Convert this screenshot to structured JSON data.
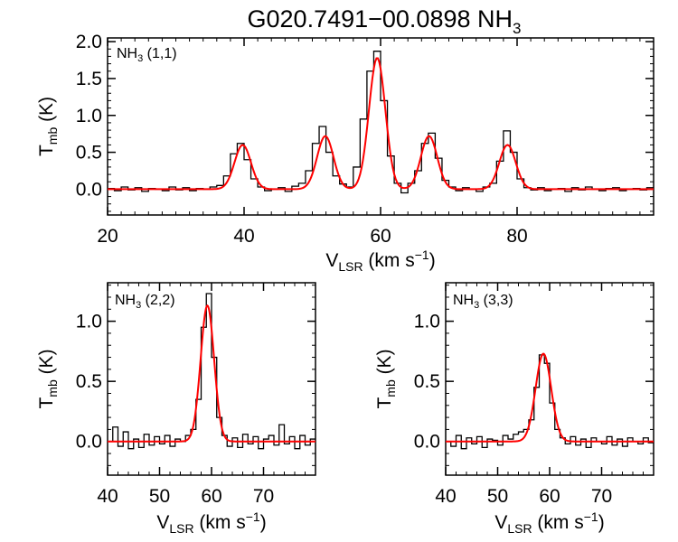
{
  "title": {
    "main": "G020.7491−00.0898 NH",
    "sub": "3"
  },
  "chart_data": [
    {
      "type": "line",
      "label_main": "NH",
      "label_sub": "3",
      "label_rest": " (1,1)",
      "xlabel_main": "V",
      "xlabel_sub": "LSR",
      "xlabel_rest": " (km s",
      "xlabel_sup": "−1",
      "xlabel_close": ")",
      "ylabel_main": "T",
      "ylabel_sub": "mb",
      "ylabel_rest": " (K)",
      "xlim": [
        20,
        100
      ],
      "ylim": [
        -0.35,
        2.05
      ],
      "xticks": [
        "20",
        "40",
        "60",
        "80"
      ],
      "xtick_values": [
        20,
        40,
        60,
        80
      ],
      "yticks": [
        "0.0",
        "0.5",
        "1.0",
        "1.5",
        "2.0"
      ],
      "ytick_values": [
        0.0,
        0.5,
        1.0,
        1.5,
        2.0
      ],
      "fit_components": [
        {
          "center": 39.8,
          "amp": 0.6,
          "sigma": 1.2
        },
        {
          "center": 51.9,
          "amp": 0.72,
          "sigma": 1.2
        },
        {
          "center": 59.5,
          "amp": 1.78,
          "sigma": 1.2
        },
        {
          "center": 67.1,
          "amp": 0.72,
          "sigma": 1.2
        },
        {
          "center": 78.6,
          "amp": 0.6,
          "sigma": 1.2
        }
      ],
      "data_x": [
        20.5,
        21.5,
        22.5,
        23.5,
        24.5,
        25.5,
        26.5,
        27.5,
        28.5,
        29.5,
        30.5,
        31.5,
        32.5,
        33.5,
        34.5,
        35.5,
        36.5,
        37.5,
        38.5,
        39.5,
        40.5,
        41.5,
        42.5,
        43.5,
        44.5,
        45.5,
        46.5,
        47.5,
        48.5,
        49.5,
        50.5,
        51.5,
        52.5,
        53.5,
        54.5,
        55.5,
        56.5,
        57.5,
        58.5,
        59.5,
        60.5,
        61.5,
        62.5,
        63.5,
        64.5,
        65.5,
        66.5,
        67.5,
        68.5,
        69.5,
        70.5,
        71.5,
        72.5,
        73.5,
        74.5,
        75.5,
        76.5,
        77.5,
        78.5,
        79.5,
        80.5,
        81.5,
        82.5,
        83.5,
        84.5,
        85.5,
        86.5,
        87.5,
        88.5,
        89.5,
        90.5,
        91.5,
        92.5,
        93.5,
        94.5,
        95.5,
        96.5,
        97.5,
        98.5,
        99.5
      ],
      "data_y": [
        0.01,
        -0.02,
        0.03,
        -0.01,
        0.02,
        -0.03,
        0.01,
        0.0,
        -0.02,
        0.03,
        -0.01,
        0.02,
        -0.02,
        0.01,
        0.0,
        0.03,
        0.05,
        0.18,
        0.48,
        0.62,
        0.4,
        0.14,
        0.03,
        -0.02,
        0.0,
        0.02,
        -0.03,
        0.04,
        0.08,
        0.25,
        0.62,
        0.85,
        0.5,
        0.18,
        0.07,
        0.03,
        0.3,
        0.95,
        1.6,
        1.87,
        1.2,
        0.45,
        0.08,
        -0.05,
        0.08,
        0.25,
        0.62,
        0.76,
        0.42,
        0.12,
        0.03,
        -0.02,
        0.02,
        0.0,
        -0.03,
        0.03,
        0.08,
        0.38,
        0.79,
        0.5,
        0.14,
        0.02,
        -0.01,
        0.02,
        -0.02,
        0.0,
        0.01,
        -0.03,
        0.02,
        -0.01,
        0.03,
        0.0,
        -0.02,
        0.01,
        0.02,
        -0.02,
        0.0,
        0.01,
        -0.01,
        0.02
      ]
    },
    {
      "type": "line",
      "label_main": "NH",
      "label_sub": "3",
      "label_rest": " (2,2)",
      "xlabel_main": "V",
      "xlabel_sub": "LSR",
      "xlabel_rest": " (km s",
      "xlabel_sup": "−1",
      "xlabel_close": ")",
      "ylabel_main": "T",
      "ylabel_sub": "mb",
      "ylabel_rest": " (K)",
      "xlim": [
        40,
        80
      ],
      "ylim": [
        -0.28,
        1.32
      ],
      "xticks": [
        "40",
        "50",
        "60",
        "70"
      ],
      "xtick_values": [
        40,
        50,
        60,
        70
      ],
      "yticks": [
        "0.0",
        "0.5",
        "1.0"
      ],
      "ytick_values": [
        0.0,
        0.5,
        1.0
      ],
      "fit_components": [
        {
          "center": 59.2,
          "amp": 1.13,
          "sigma": 1.3
        }
      ],
      "data_x": [
        40.5,
        41.5,
        42.5,
        43.5,
        44.5,
        45.5,
        46.5,
        47.5,
        48.5,
        49.5,
        50.5,
        51.5,
        52.5,
        53.5,
        54.5,
        55.5,
        56.5,
        57.5,
        58.5,
        59.5,
        60.5,
        61.5,
        62.5,
        63.5,
        64.5,
        65.5,
        66.5,
        67.5,
        68.5,
        69.5,
        70.5,
        71.5,
        72.5,
        73.5,
        74.5,
        75.5,
        76.5,
        77.5,
        78.5,
        79.5
      ],
      "data_y": [
        0.0,
        0.12,
        -0.04,
        0.08,
        -0.06,
        0.02,
        -0.05,
        0.06,
        -0.03,
        0.04,
        -0.02,
        0.05,
        -0.04,
        0.02,
        0.0,
        0.05,
        0.1,
        0.35,
        0.95,
        1.23,
        0.7,
        0.2,
        0.05,
        -0.04,
        0.03,
        -0.05,
        0.06,
        -0.02,
        0.04,
        -0.06,
        0.02,
        0.05,
        -0.03,
        0.14,
        -0.02,
        0.04,
        -0.06,
        0.05,
        -0.03,
        0.02
      ]
    },
    {
      "type": "line",
      "label_main": "NH",
      "label_sub": "3",
      "label_rest": " (3,3)",
      "xlabel_main": "V",
      "xlabel_sub": "LSR",
      "xlabel_rest": " (km s",
      "xlabel_sup": "−1",
      "xlabel_close": ")",
      "ylabel_main": "T",
      "ylabel_sub": "mb",
      "ylabel_rest": " (K)",
      "xlim": [
        40,
        80
      ],
      "ylim": [
        -0.28,
        1.32
      ],
      "xticks": [
        "40",
        "50",
        "60",
        "70"
      ],
      "xtick_values": [
        40,
        50,
        60,
        70
      ],
      "yticks": [
        "0.0",
        "0.5",
        "1.0"
      ],
      "ytick_values": [
        0.0,
        0.5,
        1.0
      ],
      "fit_components": [
        {
          "center": 58.8,
          "amp": 0.73,
          "sigma": 1.5
        }
      ],
      "data_x": [
        40.5,
        41.5,
        42.5,
        43.5,
        44.5,
        45.5,
        46.5,
        47.5,
        48.5,
        49.5,
        50.5,
        51.5,
        52.5,
        53.5,
        54.5,
        55.5,
        56.5,
        57.5,
        58.5,
        59.5,
        60.5,
        61.5,
        62.5,
        63.5,
        64.5,
        65.5,
        66.5,
        67.5,
        68.5,
        69.5,
        70.5,
        71.5,
        72.5,
        73.5,
        74.5,
        75.5,
        76.5,
        77.5,
        78.5,
        79.5
      ],
      "data_y": [
        0.0,
        -0.04,
        0.05,
        -0.06,
        0.03,
        -0.02,
        0.04,
        -0.05,
        0.02,
        0.01,
        -0.03,
        0.05,
        0.02,
        0.06,
        0.08,
        0.1,
        0.18,
        0.45,
        0.72,
        0.65,
        0.32,
        0.1,
        0.03,
        -0.02,
        0.04,
        -0.03,
        0.02,
        -0.05,
        0.03,
        0.0,
        -0.02,
        0.04,
        -0.03,
        0.02,
        -0.04,
        0.03,
        0.0,
        -0.02,
        0.03,
        -0.01
      ]
    }
  ],
  "colors": {
    "histogram": "#000000",
    "fit": "#ff0000"
  }
}
